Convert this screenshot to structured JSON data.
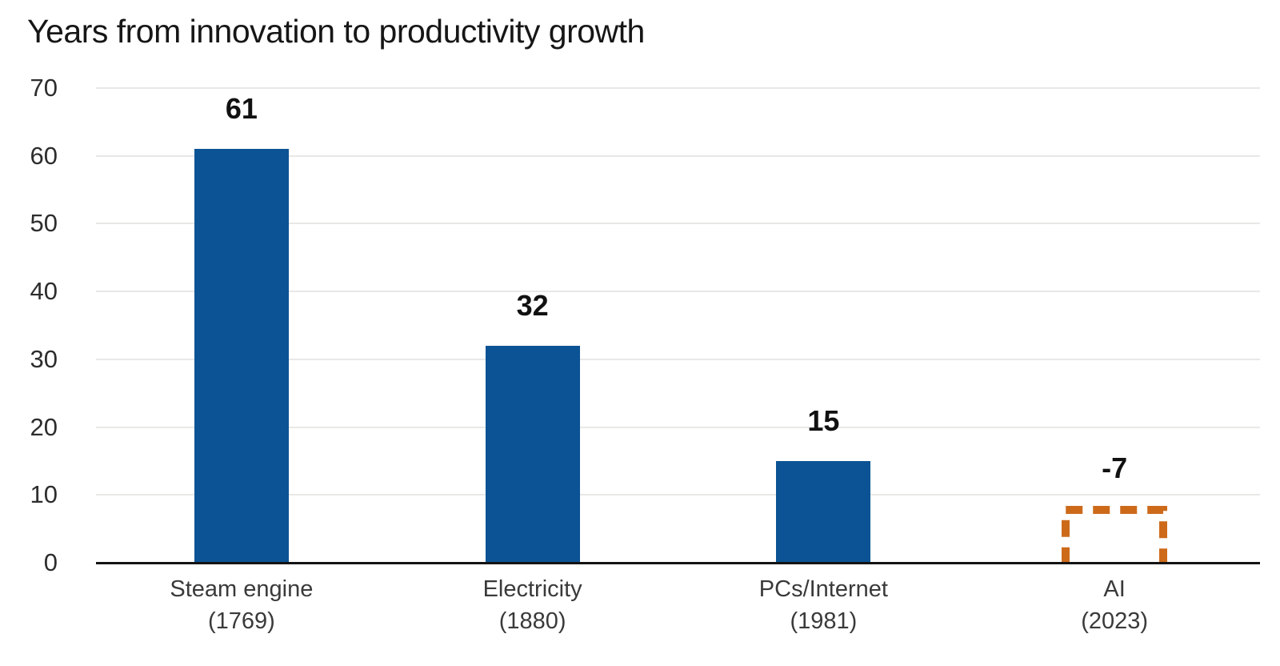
{
  "chart_data": {
    "type": "bar",
    "title": "Years from innovation to productivity growth",
    "xlabel": "",
    "ylabel": "",
    "ylim": [
      0,
      70
    ],
    "yticks": [
      0,
      10,
      20,
      30,
      40,
      50,
      60,
      70
    ],
    "grid": true,
    "legend_position": "none",
    "categories": [
      "Steam engine (1769)",
      "Electricity (1880)",
      "PCs/Internet (1981)",
      "AI (2023)"
    ],
    "values": [
      61,
      32,
      15,
      -7
    ],
    "points": [
      {
        "label": "Steam engine",
        "sublabel": "(1769)",
        "value": 61,
        "value_label": "61",
        "style": "solid"
      },
      {
        "label": "Electricity",
        "sublabel": "(1880)",
        "value": 32,
        "value_label": "32",
        "style": "solid"
      },
      {
        "label": "PCs/Internet",
        "sublabel": "(1981)",
        "value": 15,
        "value_label": "15",
        "style": "solid"
      },
      {
        "label": "AI",
        "sublabel": "(2023)",
        "value": -7,
        "value_label": "-7",
        "style": "dashed",
        "draw_height_units": 8
      }
    ],
    "colors": {
      "bar": "#0b5394",
      "dashed_bar": "#cd6a1a",
      "gridline": "#e8e8e6",
      "axis": "#141414",
      "title": "#161616",
      "tick_label": "#2d2d2d",
      "value_label": "#111111",
      "category_label": "#3a3a3a"
    }
  }
}
